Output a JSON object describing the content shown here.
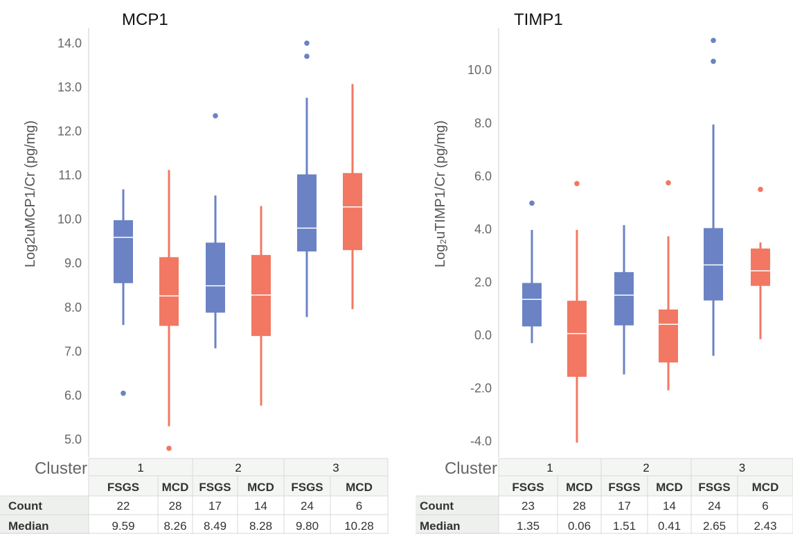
{
  "chart_data": [
    {
      "type": "box",
      "title": "MCP1",
      "ylabel": "Log2uMCP1/Cr (pg/mg)",
      "ylim": [
        4.6,
        14.35
      ],
      "yticks": [
        "5.0",
        "6.0",
        "7.0",
        "8.0",
        "9.0",
        "10.0",
        "11.0",
        "12.0",
        "13.0",
        "14.0"
      ],
      "column_header_label": "Cluster",
      "clusters": [
        "1",
        "2",
        "3"
      ],
      "groups": [
        "FSGS",
        "MCD"
      ],
      "table_rows": [
        {
          "label": "Count",
          "values": [
            "22",
            "28",
            "17",
            "14",
            "24",
            "6"
          ]
        },
        {
          "label": "Median",
          "values": [
            "9.59",
            "8.26",
            "8.49",
            "8.28",
            "9.80",
            "10.28"
          ]
        }
      ],
      "series": [
        {
          "cluster": "1",
          "group": "FSGS",
          "min": 7.6,
          "q1": 8.55,
          "median": 9.59,
          "q3": 9.98,
          "max": 10.68,
          "outliers": [
            6.05
          ]
        },
        {
          "cluster": "1",
          "group": "MCD",
          "min": 5.3,
          "q1": 7.58,
          "median": 8.26,
          "q3": 9.14,
          "max": 11.12,
          "outliers": [
            4.8
          ]
        },
        {
          "cluster": "2",
          "group": "FSGS",
          "min": 7.07,
          "q1": 7.88,
          "median": 8.49,
          "q3": 9.47,
          "max": 10.54,
          "outliers": [
            12.35
          ]
        },
        {
          "cluster": "2",
          "group": "MCD",
          "min": 5.77,
          "q1": 7.35,
          "median": 8.28,
          "q3": 9.19,
          "max": 10.3,
          "outliers": []
        },
        {
          "cluster": "3",
          "group": "FSGS",
          "min": 7.78,
          "q1": 9.27,
          "median": 9.8,
          "q3": 11.02,
          "max": 12.76,
          "outliers": [
            13.7,
            14.0
          ]
        },
        {
          "cluster": "3",
          "group": "MCD",
          "min": 7.96,
          "q1": 9.3,
          "median": 10.28,
          "q3": 11.05,
          "max": 13.07,
          "outliers": []
        }
      ]
    },
    {
      "type": "box",
      "title": "TIMP1",
      "ylabel": "Log₂uTIMP1/Cr (pg/mg)",
      "ylim": [
        -4.6,
        11.6
      ],
      "yticks": [
        "-4.0",
        "-2.0",
        "0.0",
        "2.0",
        "4.0",
        "6.0",
        "8.0",
        "10.0"
      ],
      "column_header_label": "Cluster",
      "clusters": [
        "1",
        "2",
        "3"
      ],
      "groups": [
        "FSGS",
        "MCD"
      ],
      "table_rows": [
        {
          "label": "Count",
          "values": [
            "23",
            "28",
            "17",
            "14",
            "24",
            "6"
          ]
        },
        {
          "label": "Median",
          "values": [
            "1.35",
            "0.06",
            "1.51",
            "0.41",
            "2.65",
            "2.43"
          ]
        }
      ],
      "series": [
        {
          "cluster": "1",
          "group": "FSGS",
          "min": -0.3,
          "q1": 0.33,
          "median": 1.35,
          "q3": 1.97,
          "max": 3.97,
          "outliers": [
            4.98
          ]
        },
        {
          "cluster": "1",
          "group": "MCD",
          "min": -4.05,
          "q1": -1.57,
          "median": 0.06,
          "q3": 1.3,
          "max": 3.97,
          "outliers": [
            5.72
          ]
        },
        {
          "cluster": "2",
          "group": "FSGS",
          "min": -1.48,
          "q1": 0.37,
          "median": 1.51,
          "q3": 2.38,
          "max": 4.15,
          "outliers": []
        },
        {
          "cluster": "2",
          "group": "MCD",
          "min": -2.08,
          "q1": -1.03,
          "median": 0.41,
          "q3": 0.97,
          "max": 3.73,
          "outliers": [
            5.75
          ]
        },
        {
          "cluster": "3",
          "group": "FSGS",
          "min": -0.78,
          "q1": 1.31,
          "median": 2.65,
          "q3": 4.04,
          "max": 7.95,
          "outliers": [
            10.33,
            11.12
          ]
        },
        {
          "cluster": "3",
          "group": "MCD",
          "min": -0.15,
          "q1": 1.86,
          "median": 2.43,
          "q3": 3.27,
          "max": 3.5,
          "outliers": [
            5.5
          ]
        }
      ]
    }
  ],
  "colors": {
    "FSGS": "#6b83c4",
    "MCD": "#f27863",
    "axis": "#cccccc",
    "grid": "#d8d8d8",
    "header_bg": "#f4f6f4"
  }
}
